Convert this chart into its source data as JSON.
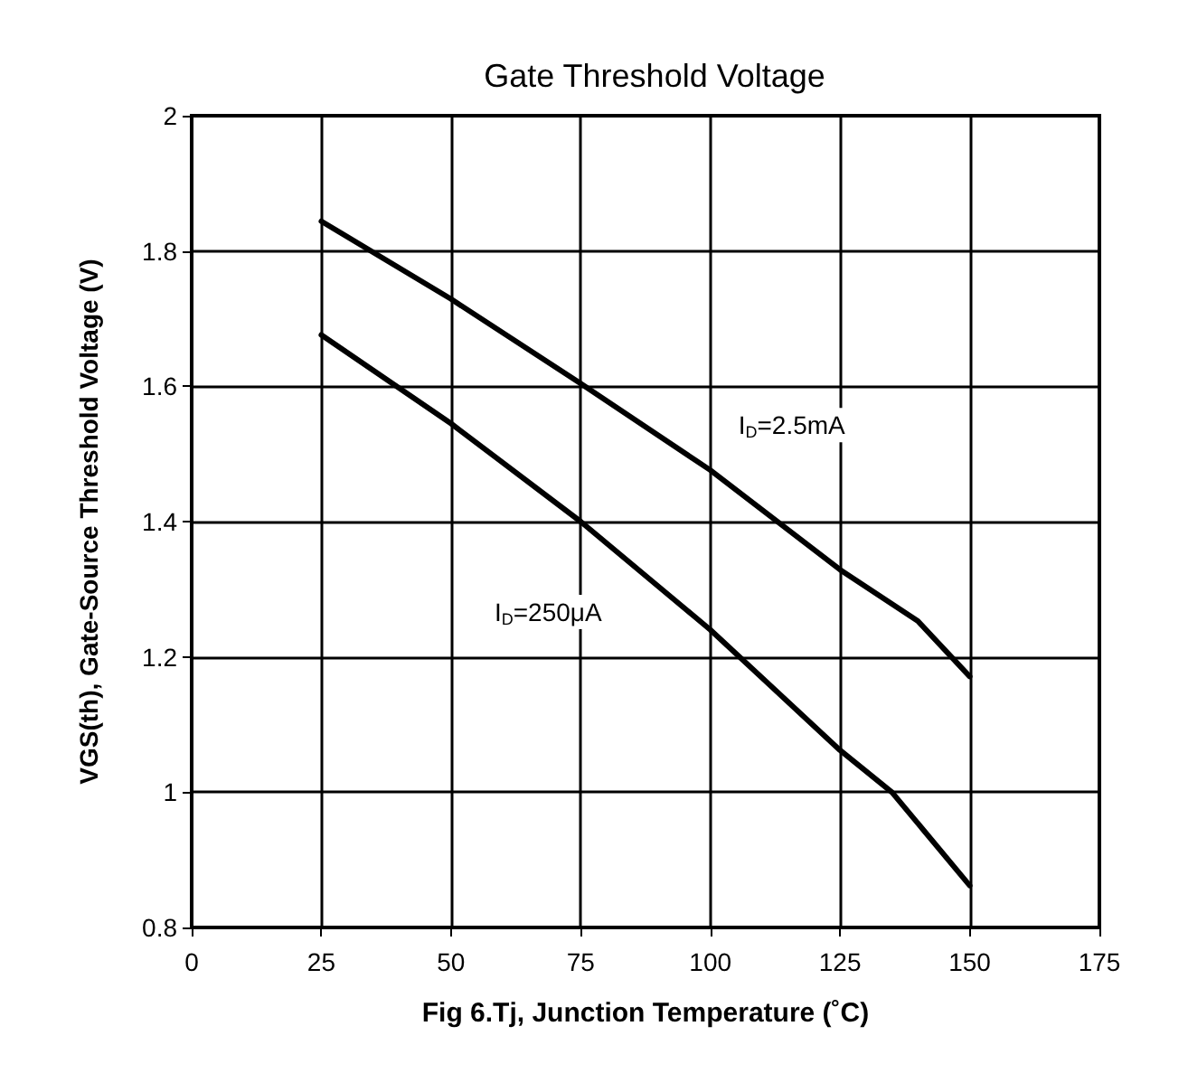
{
  "chart_data": {
    "type": "line",
    "title": "Gate Threshold Voltage",
    "xlabel": "Fig 6.Tj, Junction Temperature (˚C)",
    "ylabel": "VGS(th), Gate-Source Threshold Voltage (V)",
    "series": [
      {
        "name": "I$_{D}$=2.5mA",
        "color": "#000000",
        "x": [
          25,
          50,
          75,
          100,
          125,
          140,
          150
        ],
        "values": [
          1.844,
          1.729,
          1.604,
          1.476,
          1.329,
          1.253,
          1.171
        ]
      },
      {
        "name": "I$_{D}$=250μA",
        "color": "#000000",
        "x": [
          25,
          50,
          75,
          100,
          125,
          135,
          150
        ],
        "values": [
          1.676,
          1.545,
          1.4,
          1.24,
          1.062,
          1.0,
          0.862
        ]
      }
    ],
    "xlim": [
      0,
      175
    ],
    "xticks": [
      0,
      25,
      50,
      75,
      100,
      125,
      150,
      175
    ],
    "ylim": [
      0.8,
      2
    ],
    "yticks": [
      0.8,
      1,
      1.2,
      1.4,
      1.6,
      1.8,
      2
    ],
    "grid": true,
    "marker": "none",
    "line_style": "solid"
  }
}
